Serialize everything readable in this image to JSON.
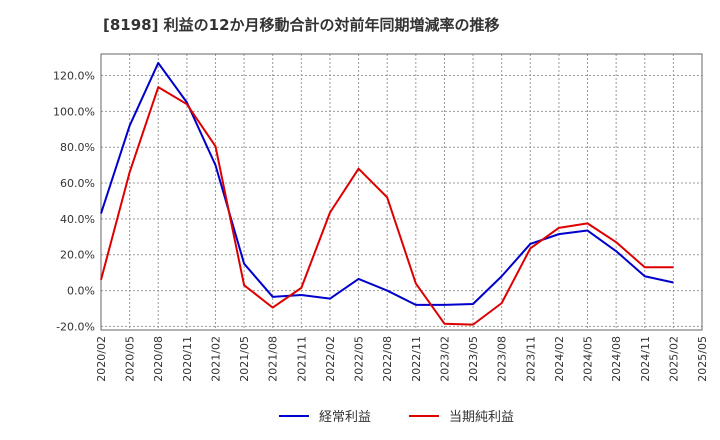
{
  "chart_data": {
    "type": "line",
    "title": "[8198]  利益の12か月移動合計の対前年同期増減率の推移",
    "x": [
      "2020/02",
      "2020/05",
      "2020/08",
      "2020/11",
      "2021/02",
      "2021/05",
      "2021/08",
      "2021/11",
      "2022/02",
      "2022/05",
      "2022/08",
      "2022/11",
      "2023/02",
      "2023/05",
      "2023/08",
      "2023/11",
      "2024/02",
      "2024/05",
      "2024/08",
      "2024/11",
      "2025/02",
      "2025/05"
    ],
    "ylim": [
      -22,
      132
    ],
    "yticks": [
      -20,
      0,
      20,
      40,
      60,
      80,
      100,
      120
    ],
    "ytick_labels": [
      "-20.0%",
      "0.0%",
      "20.0%",
      "40.0%",
      "60.0%",
      "80.0%",
      "100.0%",
      "120.0%"
    ],
    "grid": true,
    "legend_position": "bottom-center",
    "series": [
      {
        "name": "経常利益",
        "color": "#0000cc",
        "values": [
          43,
          92,
          127,
          105,
          70,
          15,
          -3.5,
          -2.5,
          -4.5,
          6.5,
          0,
          -8,
          -8,
          -7.5,
          8,
          26,
          31.5,
          33.5,
          22,
          8,
          4.5,
          null
        ]
      },
      {
        "name": "当期純利益",
        "color": "#dd0000",
        "values": [
          6,
          66,
          113.5,
          104,
          80.5,
          3,
          -9.5,
          1.5,
          43.5,
          68,
          52,
          4,
          -18.5,
          -19,
          -7,
          23.5,
          35,
          37.5,
          27,
          13,
          13,
          null
        ]
      }
    ]
  }
}
